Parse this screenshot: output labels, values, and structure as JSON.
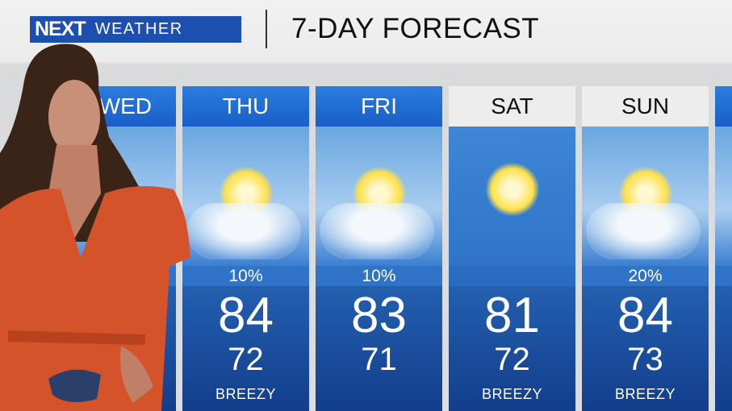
{
  "brand": {
    "next": "NEXT",
    "weather": "WEATHER",
    "color": "#1d4fb0"
  },
  "title": "7-DAY FORECAST",
  "days": [
    {
      "day": "WED",
      "visible_label": "ED",
      "precip": "",
      "hi": "",
      "lo": "",
      "note": ""
    },
    {
      "day": "THU",
      "precip": "10%",
      "hi": "84",
      "lo": "72",
      "note": "BREEZY",
      "icon": "partly-sunny-icon"
    },
    {
      "day": "FRI",
      "precip": "10%",
      "hi": "83",
      "lo": "71",
      "note": "",
      "icon": "partly-sunny-icon"
    },
    {
      "day": "SAT",
      "precip": "",
      "hi": "81",
      "lo": "72",
      "note": "BREEZY",
      "icon": "sunny-icon"
    },
    {
      "day": "SUN",
      "precip": "20%",
      "hi": "84",
      "lo": "73",
      "note": "BREEZY",
      "icon": "partly-sunny-icon"
    }
  ]
}
